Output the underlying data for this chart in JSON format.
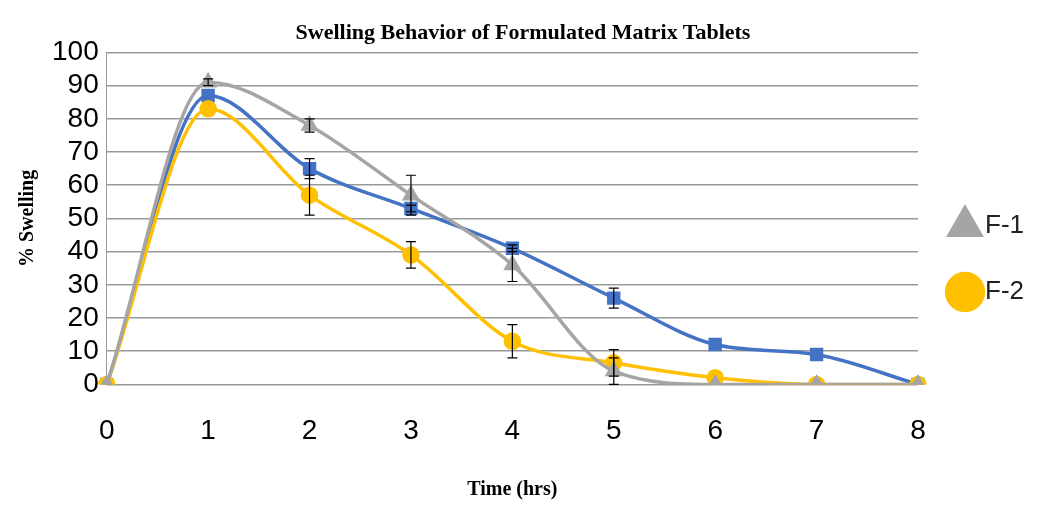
{
  "chart_data": {
    "type": "line",
    "title": "Swelling Behavior of Formulated Matrix Tablets",
    "xlabel": "Time (hrs)",
    "ylabel": "% Swelling",
    "categories": [
      "0",
      "1",
      "2",
      "3",
      "4",
      "5",
      "6",
      "7",
      "8"
    ],
    "ylim": [
      0,
      100
    ],
    "yticks": [
      0,
      10,
      20,
      30,
      40,
      50,
      60,
      70,
      80,
      90,
      100
    ],
    "grid": "y",
    "legend": "right",
    "series": [
      {
        "name": "F-1",
        "color": "#a5a5a5",
        "marker": "triangle",
        "values": [
          0,
          91,
          78,
          57,
          36,
          4,
          0,
          0,
          0
        ],
        "errors": [
          null,
          1,
          2,
          6,
          5,
          4,
          null,
          null,
          null
        ]
      },
      {
        "name": "F-2",
        "color": "#ffc000",
        "marker": "circle",
        "values": [
          0,
          83,
          57,
          39,
          13,
          6.5,
          2,
          0,
          0
        ],
        "errors": [
          null,
          null,
          6,
          4,
          5,
          4,
          null,
          null,
          null
        ]
      },
      {
        "color": "#4472c4",
        "marker": "square",
        "values": [
          0,
          87,
          65,
          53,
          41,
          26,
          12,
          9,
          0
        ],
        "errors": [
          null,
          null,
          3,
          1,
          1,
          3,
          null,
          null,
          null
        ]
      }
    ]
  }
}
